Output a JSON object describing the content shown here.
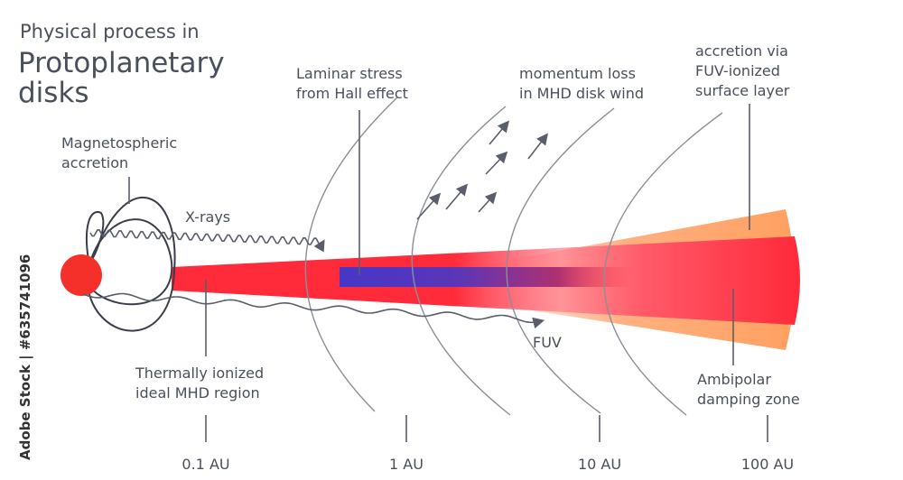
{
  "title": {
    "line1": "Physical process in",
    "line2": "Protoplanetary",
    "line3": "disks"
  },
  "labels": {
    "magnetospheric": [
      "Magnetospheric",
      "accretion"
    ],
    "xrays": "X-rays",
    "laminar": [
      "Laminar stress",
      "from Hall effect"
    ],
    "momentum": [
      "momentum loss",
      "in MHD disk wind"
    ],
    "fuv_surface": [
      "accretion via",
      "FUV-ionized",
      "surface layer"
    ],
    "fuv": "FUV",
    "thermal": [
      "Thermally ionized",
      "ideal MHD region"
    ],
    "ambipolar": [
      "Ambipolar",
      "damping zone"
    ]
  },
  "scale": [
    "0.1 AU",
    "1 AU",
    "10 AU",
    "100 AU"
  ],
  "watermark": "Adobe Stock | #635741096",
  "colors": {
    "star": "#f5302a",
    "disk": "#ff2a3a",
    "outer": "#ffa46a",
    "dead_zone": "#4637c8",
    "text": "#4a4f5c"
  }
}
